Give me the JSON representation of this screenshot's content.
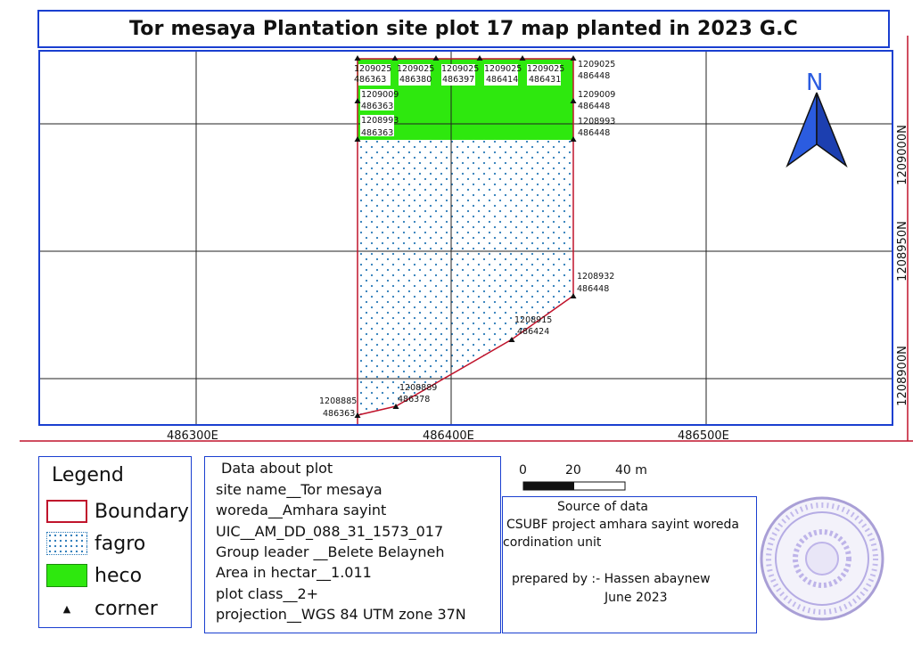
{
  "title": "Tor mesaya Plantation site plot 17 map planted in 2023 G.C",
  "north_arrow": {
    "label": "N",
    "icon": "north-arrow-icon"
  },
  "axes": {
    "x_labels": [
      "486300E",
      "486400E",
      "486500E"
    ],
    "y_labels": [
      "1209000N",
      "1208950N",
      "1208900N"
    ]
  },
  "corners": [
    {
      "n": "1209025",
      "e": "486363"
    },
    {
      "n": "1209025",
      "e": "486380"
    },
    {
      "n": "1209025",
      "e": "486397"
    },
    {
      "n": "1209025",
      "e": "486414"
    },
    {
      "n": "1209025",
      "e": "486431"
    },
    {
      "n": "1209025",
      "e": "486448"
    },
    {
      "n": "1209009",
      "e": "486363"
    },
    {
      "n": "1209009",
      "e": "486448"
    },
    {
      "n": "1208993",
      "e": "486363"
    },
    {
      "n": "1208993",
      "e": "486448"
    },
    {
      "n": "1208932",
      "e": "486448"
    },
    {
      "n": "1208915",
      "e": "486424"
    },
    {
      "n": "1208889",
      "e": "486378"
    },
    {
      "n": "1208885",
      "e": "486363"
    }
  ],
  "legend": {
    "title": "Legend",
    "items": [
      {
        "label": "Boundary"
      },
      {
        "label": "fagro"
      },
      {
        "label": "heco"
      },
      {
        "label": "corner"
      }
    ],
    "colors": {
      "boundary": "#c0142c",
      "fagro_dots": "#2a7ab8",
      "heco": "#2ee80e"
    }
  },
  "plot_info": {
    "heading": "Data about plot",
    "lines": [
      "site name__Tor mesaya",
      "woreda__Amhara sayint",
      "UIC__AM_DD_088_31_1573_017",
      "Group leader __Belete Belayneh",
      "Area in hectar__1.011",
      "plot class__2+",
      "projection__WGS 84 UTM zone 37N"
    ]
  },
  "scale_bar": {
    "labels": [
      "0",
      "20",
      "40 m"
    ]
  },
  "source": {
    "heading": "Source of data",
    "line1": "CSUBF project amhara sayint woreda",
    "line2": "cordination unit",
    "prepared": "prepared by :- Hassen abaynew",
    "date": "June 2023"
  },
  "stamp": {
    "icon": "official-stamp-icon"
  }
}
